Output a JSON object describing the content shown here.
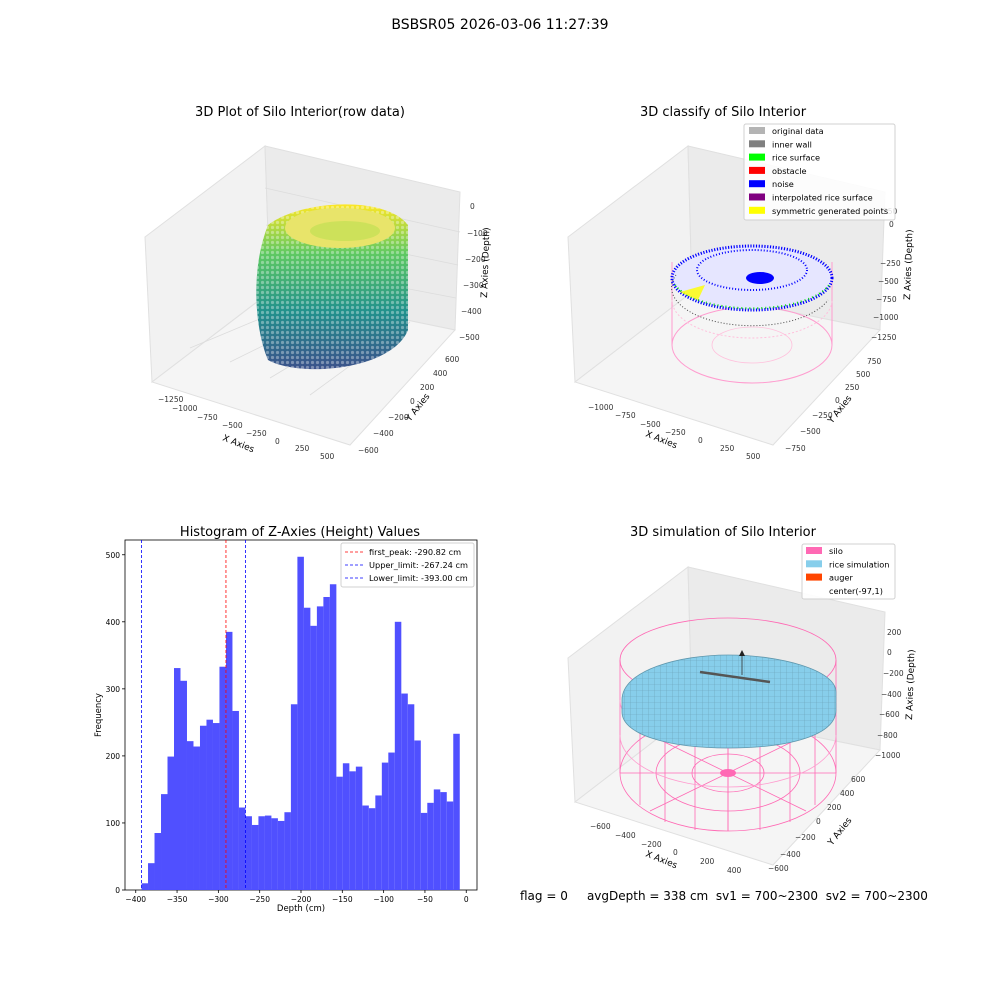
{
  "figure": {
    "suptitle": "BSBSR05 2026-03-06 11:27:39",
    "status": {
      "flag": "flag = 0",
      "avg_depth": "avgDepth = 338 cm",
      "sv1": "sv1 = 700~2300",
      "sv2": "sv2 = 700~2300"
    }
  },
  "chart_data": [
    {
      "type": "scatter3d",
      "title": "3D Plot of Silo Interior(row data)",
      "xlabel": "X Axies",
      "ylabel": "Y Axies",
      "zlabel": "Z Axies (Depth)",
      "xticks": [
        "−1250",
        "−1000",
        "−750",
        "−500",
        "−250",
        "0",
        "250",
        "500"
      ],
      "yticks": [
        "−600",
        "−400",
        "−200",
        "0",
        "200",
        "400",
        "600"
      ],
      "zticks": [
        "0",
        "−100",
        "−200",
        "−300",
        "−400",
        "−500"
      ],
      "colormap": "viridis",
      "grid": true
    },
    {
      "type": "scatter3d",
      "title": "3D classify of Silo Interior",
      "xlabel": "X Axies",
      "ylabel": "Y Axies",
      "zlabel": "Z Axies (Depth)",
      "xticks": [
        "−1000",
        "−750",
        "−500",
        "−250",
        "0",
        "250",
        "500"
      ],
      "yticks": [
        "−750",
        "−500",
        "−250",
        "0",
        "250",
        "500",
        "750"
      ],
      "zticks": [
        "250",
        "0",
        "−250",
        "−500",
        "−750",
        "−1000",
        "−1250"
      ],
      "legend_position": "top-right",
      "legend": [
        {
          "name": "original data",
          "color": "#b4b4b4"
        },
        {
          "name": "inner wall",
          "color": "#808080"
        },
        {
          "name": "rice surface",
          "color": "#00ff00"
        },
        {
          "name": "obstacle",
          "color": "#ff0000"
        },
        {
          "name": "noise",
          "color": "#0000ff"
        },
        {
          "name": "interpolated rice surface",
          "color": "#800080"
        },
        {
          "name": "symmetric generated points",
          "color": "#ffff00"
        }
      ],
      "grid": true
    },
    {
      "type": "bar",
      "title": "Histogram of Z-Axies (Height) Values",
      "xlabel": "Depth (cm)",
      "ylabel": "Frequency",
      "color": "#4c4cff",
      "bin_start": -393.0,
      "bin_width": 7.86,
      "values": [
        10,
        40,
        85,
        143,
        199,
        331,
        312,
        222,
        214,
        245,
        254,
        249,
        333,
        385,
        267,
        123,
        110,
        97,
        110,
        111,
        107,
        103,
        116,
        277,
        497,
        421,
        394,
        423,
        437,
        456,
        169,
        189,
        177,
        184,
        126,
        122,
        141,
        190,
        205,
        400,
        293,
        277,
        223,
        115,
        130,
        150,
        146,
        132,
        233
      ],
      "xticks": [
        -400,
        -350,
        -300,
        -250,
        -200,
        -150,
        -100,
        -50,
        0
      ],
      "yticks": [
        0,
        100,
        200,
        300,
        400,
        500
      ],
      "xlim": [
        -413,
        13
      ],
      "ylim": [
        0,
        522
      ],
      "vlines": [
        {
          "x": -290.82,
          "label": "first_peak: -290.82 cm",
          "color": "#ff0000"
        },
        {
          "x": -267.24,
          "label": "Upper_limit: -267.24 cm",
          "color": "#0000ff"
        },
        {
          "x": -393.0,
          "label": "Lower_limit: -393.00 cm",
          "color": "#0000ff"
        }
      ],
      "legend_position": "top-right"
    },
    {
      "type": "surface3d",
      "title": "3D simulation of Silo Interior",
      "xlabel": "X Axies",
      "ylabel": "Y Axies",
      "zlabel": "Z Axies (Depth)",
      "xticks": [
        "−600",
        "−400",
        "−200",
        "0",
        "200",
        "400"
      ],
      "yticks": [
        "−600",
        "−400",
        "−200",
        "0",
        "200",
        "400",
        "600"
      ],
      "zticks": [
        "200",
        "0",
        "−200",
        "−400",
        "−600",
        "−800",
        "−1000"
      ],
      "legend_position": "top-right",
      "legend": [
        {
          "name": "silo",
          "color": "#ff69b4"
        },
        {
          "name": "rice simulation",
          "color": "#87ceeb"
        },
        {
          "name": "auger",
          "color": "#ff4500"
        },
        {
          "name": "center(-97,1)",
          "color": ""
        }
      ],
      "grid": true
    }
  ]
}
